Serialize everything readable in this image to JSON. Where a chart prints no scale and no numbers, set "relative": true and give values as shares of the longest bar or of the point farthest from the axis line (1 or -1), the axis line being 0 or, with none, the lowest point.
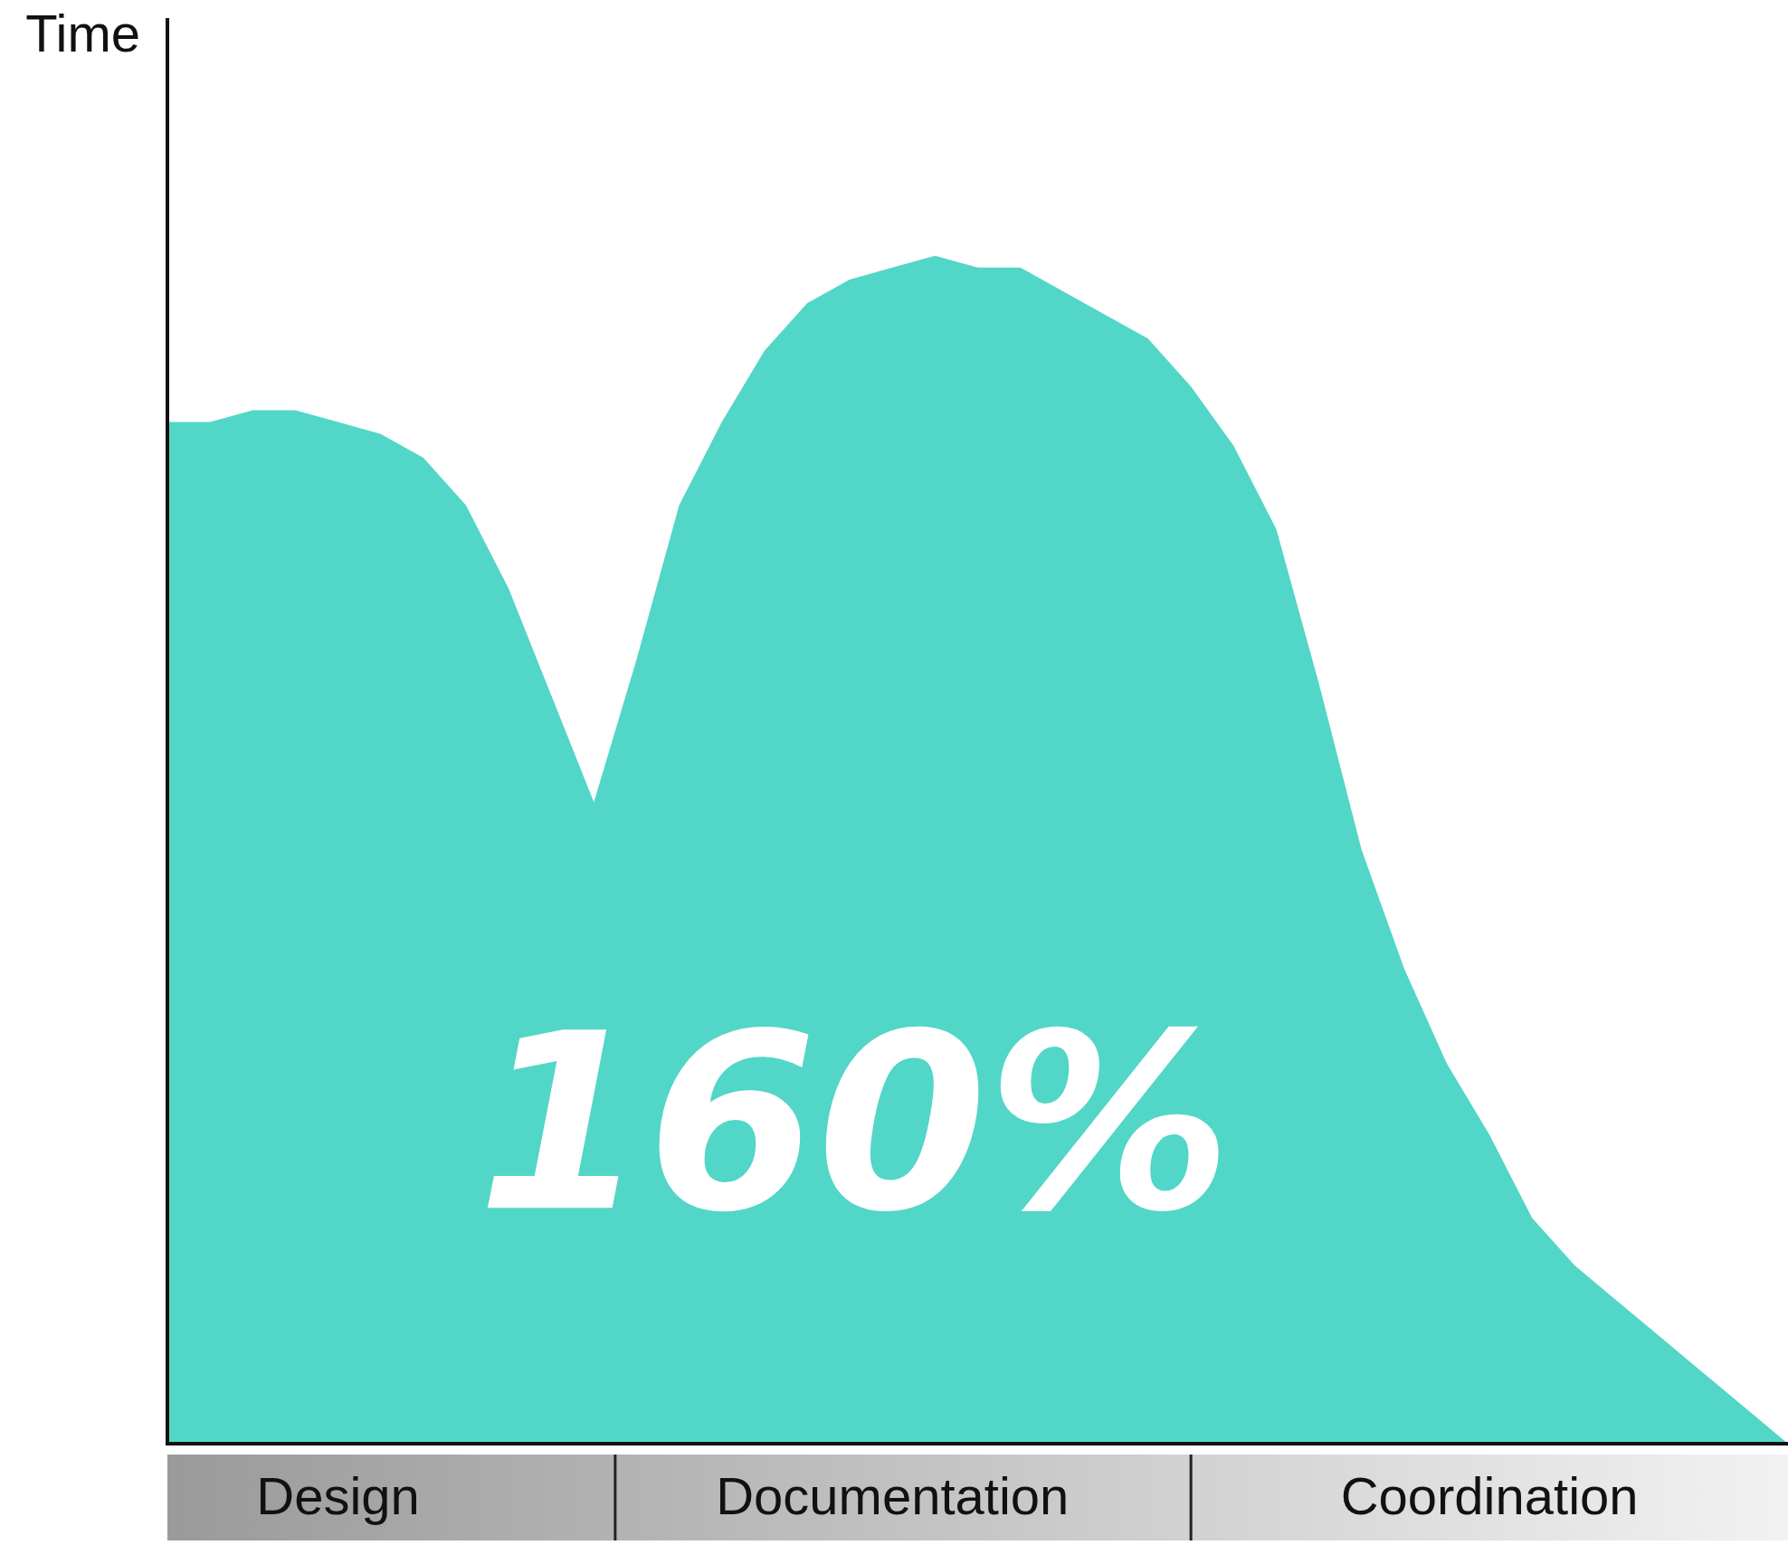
{
  "chart_data": {
    "type": "area",
    "ylabel": "Time",
    "relative": true,
    "tick_labels": "x",
    "legend": false,
    "categories": [
      null,
      null,
      null,
      null,
      "Design",
      null,
      null,
      null,
      null,
      null,
      null,
      null,
      null,
      null,
      null,
      null,
      null,
      "Documentation",
      null,
      null,
      null,
      null,
      null,
      null,
      null,
      null,
      null,
      null,
      null,
      null,
      null,
      "Coordination",
      null,
      null,
      null,
      null,
      null,
      null,
      null
    ],
    "series": [
      {
        "color": "#52d6c8",
        "values": [
          0.86,
          0.86,
          0.87,
          0.87,
          0.86,
          0.85,
          0.83,
          0.79,
          0.72,
          0.63,
          0.54,
          0.66,
          0.79,
          0.86,
          0.92,
          0.96,
          0.98,
          0.99,
          1,
          0.99,
          0.99,
          0.97,
          0.95,
          0.93,
          0.89,
          0.84,
          0.77,
          0.64,
          0.5,
          0.4,
          0.32,
          0.26,
          0.19,
          0.15,
          0.12,
          0.09,
          0.06,
          0.03,
          0
        ]
      }
    ],
    "annotations": [
      "160%"
    ]
  }
}
